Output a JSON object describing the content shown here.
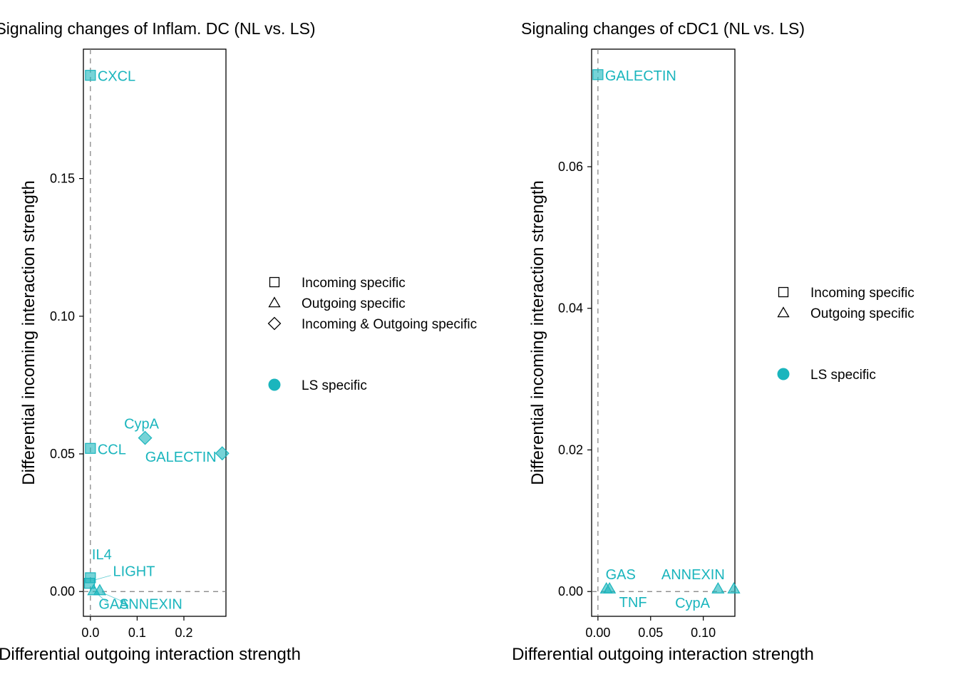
{
  "colors": {
    "ls_specific": "#1AB5BD",
    "axis": "#000000",
    "zero_line": "#7f7f7f"
  },
  "chart_data": [
    {
      "type": "scatter",
      "title": "Signaling changes of Inflam. DC (NL vs. LS)",
      "xlabel": "Differential outgoing interaction strength",
      "ylabel": "Differential incoming interaction strength",
      "xlim": [
        -0.015,
        0.29
      ],
      "ylim": [
        -0.009,
        0.197
      ],
      "xticks": [
        0.0,
        0.1,
        0.2
      ],
      "xtick_labels": [
        "0.0",
        "0.1",
        "0.2"
      ],
      "yticks": [
        0.0,
        0.05,
        0.1,
        0.15
      ],
      "ytick_labels": [
        "0.00",
        "0.05",
        "0.10",
        "0.15"
      ],
      "points": [
        {
          "label": "CXCL",
          "x": 0.0,
          "y": 0.1875,
          "shape": "square"
        },
        {
          "label": "CypA",
          "x": 0.117,
          "y": 0.0558,
          "shape": "diamond"
        },
        {
          "label": "CCL",
          "x": 0.0,
          "y": 0.052,
          "shape": "square"
        },
        {
          "label": "GALECTIN",
          "x": 0.282,
          "y": 0.0502,
          "shape": "diamond"
        },
        {
          "label": "IL4",
          "x": 0.0,
          "y": 0.005,
          "shape": "square"
        },
        {
          "label": "LIGHT",
          "x": -0.002,
          "y": 0.003,
          "shape": "square"
        },
        {
          "label": "GAS",
          "x": 0.007,
          "y": 0.0004,
          "shape": "triangle"
        },
        {
          "label": "ANNEXIN",
          "x": 0.02,
          "y": 0.0004,
          "shape": "triangle"
        }
      ],
      "legend": {
        "position": "right",
        "shapes": [
          {
            "shape": "square",
            "label": "Incoming specific"
          },
          {
            "shape": "triangle",
            "label": "Outgoing specific"
          },
          {
            "shape": "diamond",
            "label": "Incoming & Outgoing specific"
          }
        ],
        "colors": [
          {
            "label": "LS specific",
            "color": "#1AB5BD"
          }
        ]
      }
    },
    {
      "type": "scatter",
      "title": "Signaling changes of cDC1 (NL vs. LS)",
      "xlabel": "Differential outgoing interaction strength",
      "ylabel": "Differential incoming interaction strength",
      "xlim": [
        -0.006,
        0.13
      ],
      "ylim": [
        -0.0035,
        0.0766
      ],
      "xticks": [
        0.0,
        0.05,
        0.1
      ],
      "xtick_labels": [
        "0.00",
        "0.05",
        "0.10"
      ],
      "yticks": [
        0.0,
        0.02,
        0.04,
        0.06
      ],
      "ytick_labels": [
        "0.00",
        "0.02",
        "0.04",
        "0.06"
      ],
      "points": [
        {
          "label": "GALECTIN",
          "x": 0.0,
          "y": 0.073,
          "shape": "square"
        },
        {
          "label": "GAS",
          "x": 0.008,
          "y": 0.0004,
          "shape": "triangle"
        },
        {
          "label": "TNF",
          "x": 0.011,
          "y": 0.0004,
          "shape": "triangle"
        },
        {
          "label": "ANNEXIN",
          "x": 0.114,
          "y": 0.0004,
          "shape": "triangle"
        },
        {
          "label": "CypA",
          "x": 0.129,
          "y": 0.0004,
          "shape": "triangle"
        }
      ],
      "legend": {
        "position": "right",
        "shapes": [
          {
            "shape": "square",
            "label": "Incoming specific"
          },
          {
            "shape": "triangle",
            "label": "Outgoing specific"
          }
        ],
        "colors": [
          {
            "label": "LS specific",
            "color": "#1AB5BD"
          }
        ]
      }
    }
  ]
}
